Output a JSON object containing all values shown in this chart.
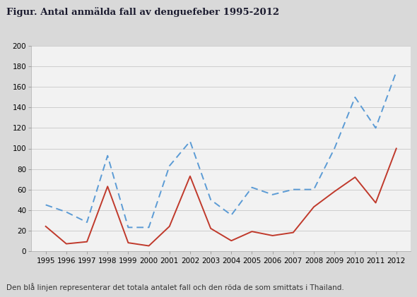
{
  "title": "Figur. Antal anmälda fall av denguefeber 1995-2012",
  "caption": "Den blå linjen representerar det totala antalet fall och den röda de som smittats i Thailand.",
  "years": [
    1995,
    1996,
    1997,
    1998,
    1999,
    2000,
    2001,
    2002,
    2003,
    2004,
    2005,
    2006,
    2007,
    2008,
    2009,
    2010,
    2011,
    2012
  ],
  "total_blue": [
    45,
    38,
    28,
    93,
    23,
    23,
    83,
    107,
    50,
    35,
    62,
    55,
    60,
    60,
    100,
    150,
    120,
    175
  ],
  "thailand_red": [
    24,
    7,
    9,
    63,
    8,
    5,
    24,
    73,
    22,
    10,
    19,
    15,
    18,
    43,
    58,
    72,
    47,
    100
  ],
  "blue_color": "#5b9bd5",
  "red_color": "#c0392b",
  "background_color": "#d9d9d9",
  "plot_bg_color": "#f2f2f2",
  "title_fontsize": 9.5,
  "caption_fontsize": 7.5,
  "tick_fontsize": 7.5,
  "ylim": [
    0,
    200
  ],
  "yticks": [
    0,
    20,
    40,
    60,
    80,
    100,
    120,
    140,
    160,
    180,
    200
  ],
  "grid_color": "#c8c8c8",
  "line_width": 1.4
}
